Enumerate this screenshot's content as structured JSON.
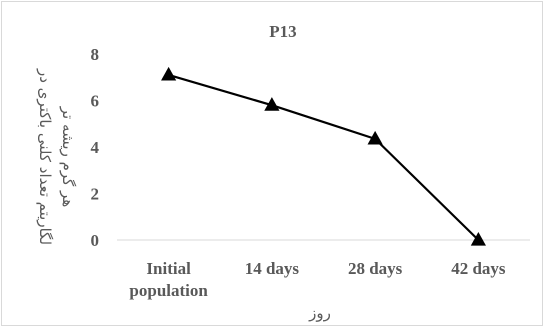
{
  "chart_data": {
    "type": "line",
    "title": "P13",
    "categories": [
      [
        "Initial",
        "population"
      ],
      [
        "14 days"
      ],
      [
        "28 days"
      ],
      [
        "42 days"
      ]
    ],
    "series": [
      {
        "values": [
          7.1,
          5.8,
          4.35,
          0
        ]
      }
    ],
    "ylim": [
      0,
      8
    ],
    "yticks": [
      0,
      2,
      4,
      6,
      8
    ],
    "ylabel_lines": [
      "لگاریتم تعداد کلنی باکتری در",
      "هر گرم ریشه تر"
    ],
    "xlabel": "روز",
    "marker": "triangle",
    "grid": false,
    "legend": "none",
    "colors": {
      "line": "#000000",
      "text": "#595959",
      "axis": "#d9d9d9",
      "border": "#d9d9d9"
    }
  }
}
